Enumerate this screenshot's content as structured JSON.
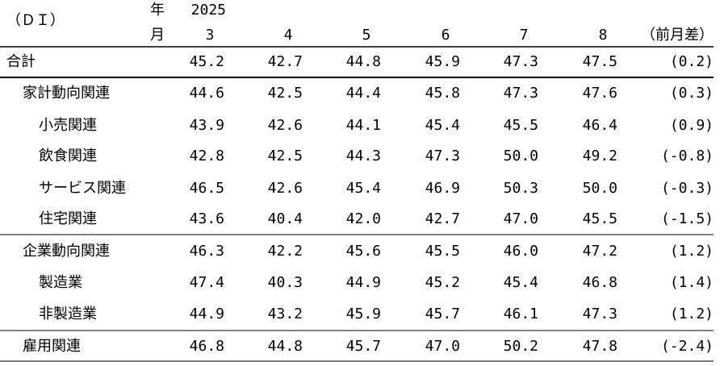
{
  "header": {
    "unit": "（ＤＩ）",
    "year_label": "年",
    "month_label": "月",
    "year": "2025",
    "months": [
      "3",
      "4",
      "5",
      "6",
      "7",
      "8"
    ],
    "diff_label": "（前月差）"
  },
  "rows": [
    {
      "label": "合計",
      "values": [
        "45.2",
        "42.7",
        "44.8",
        "45.9",
        "47.3",
        "47.5"
      ],
      "diff": "(0.2)"
    },
    {
      "label": "家計動向関連",
      "values": [
        "44.6",
        "42.5",
        "44.4",
        "45.8",
        "47.3",
        "47.6"
      ],
      "diff": "(0.3)"
    },
    {
      "label": "小売関連",
      "values": [
        "43.9",
        "42.6",
        "44.1",
        "45.4",
        "45.5",
        "46.4"
      ],
      "diff": "(0.9)"
    },
    {
      "label": "飲食関連",
      "values": [
        "42.8",
        "42.5",
        "44.3",
        "47.3",
        "50.0",
        "49.2"
      ],
      "diff": "(-0.8)"
    },
    {
      "label": "サービス関連",
      "values": [
        "46.5",
        "42.6",
        "45.4",
        "46.9",
        "50.3",
        "50.0"
      ],
      "diff": "(-0.3)"
    },
    {
      "label": "住宅関連",
      "values": [
        "43.6",
        "40.4",
        "42.0",
        "42.7",
        "47.0",
        "45.5"
      ],
      "diff": "(-1.5)"
    },
    {
      "label": "企業動向関連",
      "values": [
        "46.3",
        "42.2",
        "45.6",
        "45.5",
        "46.0",
        "47.2"
      ],
      "diff": "(1.2)"
    },
    {
      "label": "製造業",
      "values": [
        "47.4",
        "40.3",
        "44.9",
        "45.2",
        "45.4",
        "46.8"
      ],
      "diff": "(1.4)"
    },
    {
      "label": "非製造業",
      "values": [
        "44.9",
        "43.2",
        "45.9",
        "45.7",
        "46.1",
        "47.3"
      ],
      "diff": "(1.2)"
    },
    {
      "label": "雇用関連",
      "values": [
        "46.8",
        "44.8",
        "45.7",
        "47.0",
        "50.2",
        "47.8"
      ],
      "diff": "(-2.4)"
    }
  ]
}
